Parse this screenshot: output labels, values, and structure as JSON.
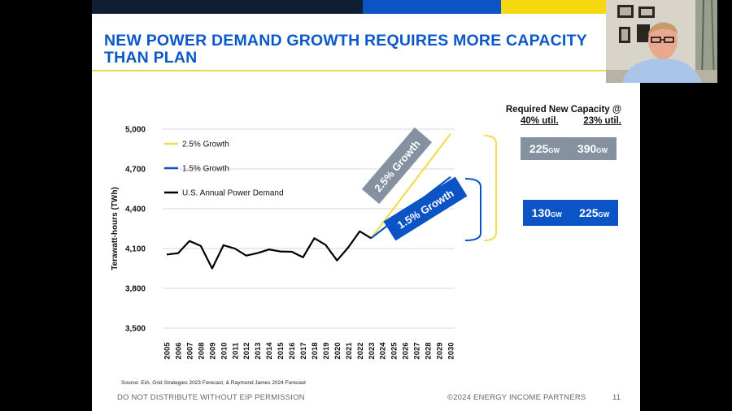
{
  "slide": {
    "title": "NEW POWER DEMAND GROWTH REQUIRES MORE CAPACITY THAN PLAN",
    "source_note": "Source: EIA, Grid Strategies 2023 Forecast, & Raymond James 2024 Forecast",
    "footer_left": "DO NOT DISTRIBUTE WITHOUT EIP PERMISSION",
    "footer_center": "©2024 ENERGY INCOME PARTNERS",
    "page_number": "11"
  },
  "capacity": {
    "header_line1": "Required New Capacity @",
    "header_40": "40% util.",
    "header_23": "23% util.",
    "high_40_value": "225",
    "high_23_value": "390",
    "low_40_value": "130",
    "low_23_value": "225",
    "unit": "GW"
  },
  "banners": {
    "high": "2.5% Growth",
    "low": "1.5% Growth"
  },
  "chart_data": {
    "type": "line",
    "ylabel": "Terawatt-hours (TWh)",
    "ylim": [
      3500,
      5000
    ],
    "yticks": [
      5000,
      4700,
      4400,
      4100,
      3800,
      3500
    ],
    "ytick_labels": [
      "5,000",
      "4,700",
      "4,400",
      "4,100",
      "3,800",
      "3,500"
    ],
    "x": [
      "2005",
      "2006",
      "2007",
      "2008",
      "2009",
      "2010",
      "2011",
      "2012",
      "2013",
      "2014",
      "2015",
      "2016",
      "2017",
      "2018",
      "2019",
      "2020",
      "2021",
      "2022",
      "2023",
      "2024",
      "2025",
      "2026",
      "2027",
      "2028",
      "2029",
      "2030"
    ],
    "grid": true,
    "legend_position": "top-left",
    "series": [
      {
        "name": "2.5% Growth",
        "color": "#f2dd4f",
        "x": [
          "2023",
          "2030"
        ],
        "values": [
          4178,
          4966
        ]
      },
      {
        "name": "1.5% Growth",
        "color": "#0a54c5",
        "x": [
          "2023",
          "2030"
        ],
        "values": [
          4178,
          4640
        ]
      },
      {
        "name": "U.S. Annual Power Demand",
        "color": "#000000",
        "x": [
          "2005",
          "2006",
          "2007",
          "2008",
          "2009",
          "2010",
          "2011",
          "2012",
          "2013",
          "2014",
          "2015",
          "2016",
          "2017",
          "2018",
          "2019",
          "2020",
          "2021",
          "2022",
          "2023"
        ],
        "values": [
          4055,
          4065,
          4157,
          4120,
          3950,
          4125,
          4100,
          4047,
          4066,
          4093,
          4078,
          4076,
          4034,
          4178,
          4127,
          4010,
          4110,
          4230,
          4178
        ]
      }
    ]
  }
}
